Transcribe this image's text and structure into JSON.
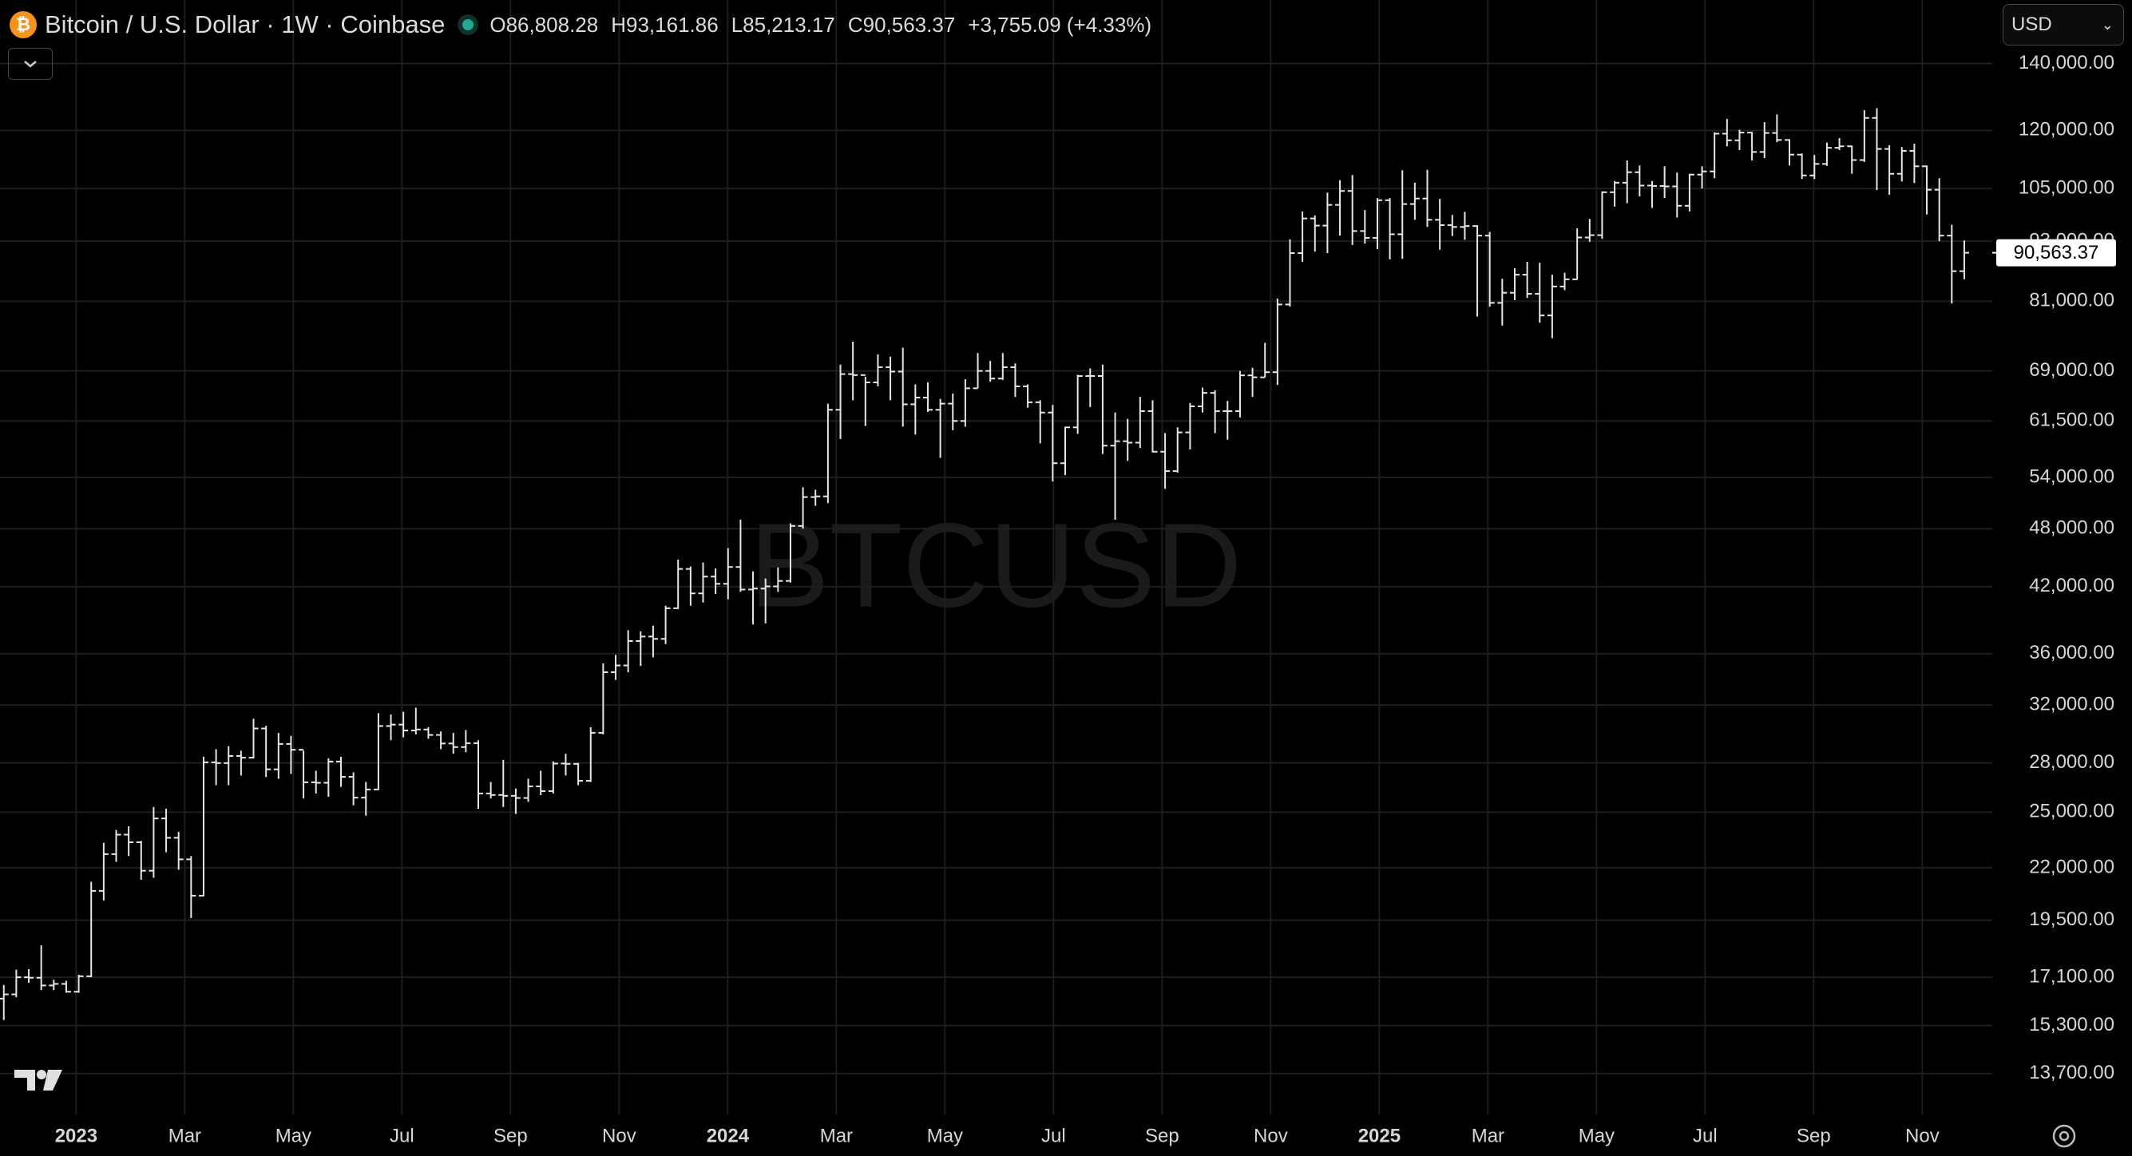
{
  "header": {
    "symbol": "Bitcoin / U.S. Dollar · 1W · Coinbase",
    "currency": "USD",
    "ohlc": [
      {
        "label": "O",
        "value": "86,808.28"
      },
      {
        "label": "H",
        "value": "93,161.86"
      },
      {
        "label": "L",
        "value": "85,213.17"
      },
      {
        "label": "C",
        "value": "90,563.37"
      }
    ],
    "change": "+3,755.09 (+4.33%)"
  },
  "chart_data": {
    "type": "ohlc",
    "watermark": "BTCUSD",
    "log_scale": true,
    "grid": true,
    "color": "#e6e6e6",
    "ylim": [
      12470,
      162000
    ],
    "yticks": [
      {
        "value": 13700,
        "label": "13,700.00"
      },
      {
        "value": 15300,
        "label": "15,300.00"
      },
      {
        "value": 17100,
        "label": "17,100.00"
      },
      {
        "value": 19500,
        "label": "19,500.00"
      },
      {
        "value": 22000,
        "label": "22,000.00"
      },
      {
        "value": 25000,
        "label": "25,000.00"
      },
      {
        "value": 28000,
        "label": "28,000.00"
      },
      {
        "value": 32000,
        "label": "32,000.00"
      },
      {
        "value": 36000,
        "label": "36,000.00"
      },
      {
        "value": 42000,
        "label": "42,000.00"
      },
      {
        "value": 48000,
        "label": "48,000.00"
      },
      {
        "value": 54000,
        "label": "54,000.00"
      },
      {
        "value": 61500,
        "label": "61,500.00"
      },
      {
        "value": 69000,
        "label": "69,000.00"
      },
      {
        "value": 81000,
        "label": "81,000.00"
      },
      {
        "value": 93000,
        "label": "93,000.00"
      },
      {
        "value": 105000,
        "label": "105,000.00"
      },
      {
        "value": 120000,
        "label": "120,000.00"
      },
      {
        "value": 140000,
        "label": "140,000.00"
      }
    ],
    "xlim": [
      "2022-11",
      "2025-12"
    ],
    "xticks": [
      {
        "value": "2023-01",
        "label": "2023"
      },
      {
        "value": "2023-03",
        "label": "Mar"
      },
      {
        "value": "2023-05",
        "label": "May"
      },
      {
        "value": "2023-07",
        "label": "Jul"
      },
      {
        "value": "2023-09",
        "label": "Sep"
      },
      {
        "value": "2023-11",
        "label": "Nov"
      },
      {
        "value": "2024-01",
        "label": "2024"
      },
      {
        "value": "2024-03",
        "label": "Mar"
      },
      {
        "value": "2024-05",
        "label": "May"
      },
      {
        "value": "2024-07",
        "label": "Jul"
      },
      {
        "value": "2024-09",
        "label": "Sep"
      },
      {
        "value": "2024-11",
        "label": "Nov"
      },
      {
        "value": "2025-01",
        "label": "2025"
      },
      {
        "value": "2025-03",
        "label": "Mar"
      },
      {
        "value": "2025-05",
        "label": "May"
      },
      {
        "value": "2025-07",
        "label": "Jul"
      },
      {
        "value": "2025-09",
        "label": "Sep"
      },
      {
        "value": "2025-11",
        "label": "Nov"
      }
    ],
    "last_price": {
      "value": 90563.37,
      "label": "90,563.37"
    },
    "open": [
      16280,
      16440,
      17100,
      17080,
      16780,
      16840,
      16540,
      17140,
      20860,
      22700,
      23740,
      23330,
      21850,
      24640,
      23570,
      22430,
      20630,
      28040,
      27990,
      28450,
      28340,
      30310,
      27590,
      29250,
      28860,
      26780,
      26750,
      28090,
      27120,
      25850,
      26340,
      30480,
      30580,
      30170,
      30240,
      29860,
      29280,
      29040,
      29300,
      26100,
      26010,
      25960,
      25830,
      26530,
      26240,
      27960,
      27940,
      26870,
      30010,
      34500,
      35040,
      37060,
      37450,
      37250,
      39970,
      43750,
      41360,
      42990,
      42280,
      43950,
      41730,
      41820,
      42030,
      42560,
      48300,
      51620,
      51700,
      63100,
      68500,
      68350,
      67200,
      69600,
      68900,
      63900,
      64900,
      63100,
      64000,
      61500,
      66300,
      69000,
      67800,
      69600,
      66600,
      64200,
      62700,
      55800,
      60600,
      68200,
      68200,
      58100,
      58700,
      58500,
      62900,
      57300,
      54800,
      59900,
      63600,
      65600,
      62900,
      62900,
      68300,
      68000,
      68800,
      80400,
      90500,
      98000,
      96400,
      101100,
      104400,
      95200,
      93700,
      102200,
      94500,
      101300,
      102600,
      97700,
      96500,
      96100,
      96300,
      94200,
      80700,
      82600,
      86100,
      82400,
      78400,
      83800,
      85200,
      93800,
      94300,
      104100,
      106400,
      109000,
      105700,
      105600,
      105500,
      100900,
      108400,
      109200,
      119100,
      117300,
      119400,
      114200,
      119300,
      117400,
      113500,
      108200,
      111100,
      115300,
      115700,
      112100,
      123500,
      115000,
      108600,
      114500,
      110500,
      104700,
      94200,
      86808.28
    ],
    "high": [
      16800,
      17400,
      17420,
      18400,
      17000,
      16960,
      17200,
      21300,
      23300,
      24000,
      24200,
      23400,
      25300,
      25200,
      23900,
      22600,
      28400,
      28900,
      29100,
      28800,
      31000,
      30500,
      30000,
      29800,
      28800,
      27500,
      28300,
      28400,
      27400,
      26800,
      31400,
      31300,
      31500,
      31800,
      30400,
      30100,
      30000,
      30200,
      29500,
      26800,
      28200,
      26400,
      27000,
      27500,
      28100,
      28600,
      28000,
      30400,
      35200,
      35900,
      38000,
      37900,
      38400,
      40200,
      44700,
      44000,
      44400,
      43800,
      45900,
      49000,
      43500,
      42800,
      43900,
      48600,
      52800,
      52500,
      64000,
      70000,
      73800,
      68100,
      71700,
      71300,
      72800,
      66900,
      67200,
      64700,
      65500,
      67700,
      71900,
      70600,
      71900,
      70200,
      66900,
      64500,
      63800,
      60700,
      68400,
      69400,
      70000,
      62700,
      61800,
      65000,
      64500,
      59800,
      60600,
      64100,
      66400,
      66000,
      64400,
      69000,
      69500,
      73600,
      81500,
      93400,
      99600,
      98700,
      104000,
      107000,
      108300,
      99900,
      102700,
      102700,
      109500,
      106400,
      109600,
      102500,
      98800,
      99500,
      96500,
      95000,
      85300,
      87400,
      88700,
      88500,
      86100,
      86500,
      95800,
      97900,
      104300,
      106800,
      112000,
      110700,
      106800,
      110500,
      108900,
      108600,
      110500,
      119500,
      123200,
      120200,
      119600,
      122300,
      124500,
      117600,
      113800,
      113400,
      116700,
      117900,
      115900,
      125700,
      126300,
      116000,
      115500,
      116400,
      110700,
      107500,
      96600,
      93161.86
    ],
    "low": [
      15500,
      16330,
      16880,
      16600,
      16600,
      16500,
      16500,
      17100,
      20400,
      22300,
      22600,
      21400,
      21500,
      22800,
      21900,
      19600,
      20600,
      26600,
      26600,
      27200,
      28300,
      27100,
      27000,
      27300,
      25800,
      26100,
      25900,
      26500,
      25400,
      24800,
      26300,
      29500,
      29700,
      29900,
      29600,
      28900,
      28600,
      28700,
      25200,
      25800,
      25300,
      24900,
      25600,
      26000,
      26100,
      27200,
      26600,
      26800,
      29900,
      33900,
      34500,
      35000,
      35700,
      36800,
      39900,
      40200,
      40500,
      41300,
      40800,
      41500,
      38500,
      38600,
      41500,
      42400,
      48000,
      50600,
      50900,
      59000,
      64500,
      60800,
      66600,
      64500,
      60700,
      59600,
      62800,
      56500,
      60200,
      60700,
      66300,
      67300,
      67600,
      65000,
      63400,
      58400,
      53500,
      54300,
      59700,
      63500,
      57000,
      49000,
      56100,
      57800,
      57200,
      52600,
      54600,
      57600,
      62700,
      59800,
      58900,
      62000,
      65000,
      68000,
      66800,
      80000,
      88700,
      90800,
      90500,
      94200,
      92200,
      92500,
      91300,
      89200,
      89300,
      97700,
      96100,
      91200,
      94100,
      93300,
      78200,
      80000,
      76600,
      81200,
      81600,
      77100,
      74400,
      83100,
      85100,
      92900,
      93500,
      100700,
      101500,
      103100,
      100400,
      102700,
      98200,
      99600,
      105000,
      107500,
      115700,
      114700,
      112000,
      112600,
      116800,
      110700,
      107300,
      107300,
      110600,
      114700,
      108600,
      111600,
      104600,
      103500,
      106700,
      106300,
      98900,
      93000,
      80600,
      85213.17
    ],
    "close": [
      16440,
      17100,
      17080,
      16780,
      16840,
      16540,
      17140,
      20860,
      22700,
      23740,
      23330,
      21850,
      24640,
      23570,
      22430,
      20630,
      28040,
      27990,
      28450,
      28340,
      30310,
      27590,
      29250,
      28860,
      26780,
      26750,
      28090,
      27120,
      25850,
      26340,
      30480,
      30580,
      30170,
      30240,
      29860,
      29280,
      29040,
      29300,
      26100,
      26010,
      25960,
      25830,
      26530,
      26240,
      27960,
      27940,
      26870,
      30010,
      34500,
      35040,
      37060,
      37450,
      37250,
      39970,
      43750,
      41360,
      42990,
      42280,
      43950,
      41730,
      41820,
      42030,
      42560,
      48300,
      51620,
      51700,
      63100,
      68500,
      68350,
      67200,
      69600,
      68900,
      63900,
      64900,
      63100,
      64000,
      61500,
      66300,
      69000,
      67800,
      69600,
      66600,
      64200,
      62700,
      55800,
      60600,
      68200,
      68200,
      58100,
      58700,
      58500,
      62900,
      57300,
      54800,
      59900,
      63600,
      65600,
      62900,
      62900,
      68300,
      68000,
      68800,
      80400,
      90500,
      98000,
      96400,
      101100,
      104400,
      95200,
      93700,
      102200,
      94500,
      101300,
      102600,
      97700,
      96500,
      96100,
      96300,
      94200,
      80700,
      82600,
      86100,
      82400,
      78400,
      83800,
      85200,
      93800,
      94300,
      104100,
      106400,
      109000,
      105700,
      105600,
      105500,
      100900,
      108400,
      109200,
      119100,
      117300,
      119400,
      114200,
      119300,
      117400,
      113500,
      108200,
      111100,
      115300,
      115700,
      112100,
      123500,
      115000,
      108600,
      114500,
      110500,
      104700,
      94200,
      86808.28,
      90563.37
    ]
  }
}
